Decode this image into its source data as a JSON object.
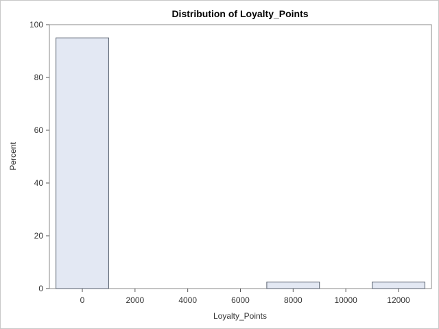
{
  "chart_data": {
    "type": "bar",
    "title": "Distribution of Loyalty_Points",
    "xlabel": "Loyalty_Points",
    "ylabel": "Percent",
    "bin_width": 2000,
    "bins": [
      {
        "center": 0,
        "value": 95
      },
      {
        "center": 8000,
        "value": 2.5
      },
      {
        "center": 12000,
        "value": 2.5
      }
    ],
    "xlim": [
      -1250,
      13250
    ],
    "ylim": [
      0,
      100
    ],
    "x_ticks": [
      0,
      2000,
      4000,
      6000,
      8000,
      10000,
      12000
    ],
    "y_ticks": [
      0,
      20,
      40,
      60,
      80,
      100
    ],
    "bar_fill": "#e3e8f3",
    "bar_stroke": "#555e6b",
    "grid": false,
    "legend": "none"
  }
}
